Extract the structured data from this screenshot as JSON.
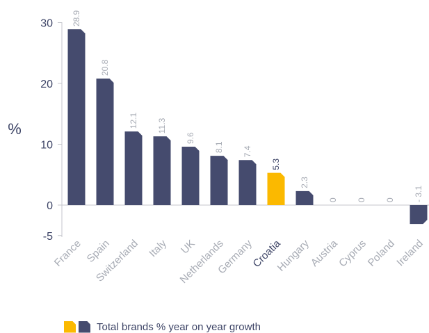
{
  "chart_data": {
    "type": "bar",
    "categories": [
      "France",
      "Spain",
      "Switzerland",
      "Italy",
      "UK",
      "Netherlands",
      "Germany",
      "Croatia",
      "Hungary",
      "Austria",
      "Cyprus",
      "Poland",
      "Ireland"
    ],
    "values": [
      28.9,
      20.8,
      12.1,
      11.3,
      9.6,
      8.1,
      7.4,
      5.3,
      2.3,
      0,
      0,
      0,
      -3.1
    ],
    "value_labels": [
      "28.9",
      "20.8",
      "12.1",
      "11.3",
      "9.6",
      "8.1",
      "7.4",
      "5.3",
      "2.3",
      "0",
      "0",
      "0",
      "- 3.1"
    ],
    "highlight": "Croatia",
    "ylabel": "%",
    "yticks": [
      "30",
      "20",
      "10",
      "0",
      "-5"
    ],
    "ylim": [
      -5,
      30
    ],
    "grid": false,
    "legend": {
      "position": "bottom",
      "label": "Total brands % year on year growth"
    },
    "colors": {
      "bar": "#454b6e",
      "highlight": "#fbb900",
      "axis": "#c4c6cc",
      "text": "#3d4466",
      "muted": "#a7abb4"
    }
  }
}
